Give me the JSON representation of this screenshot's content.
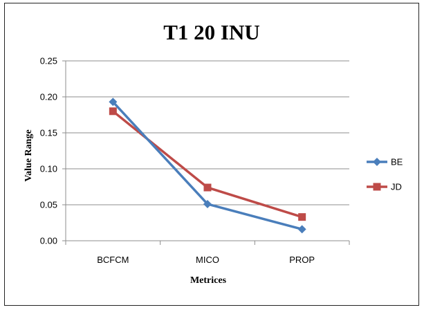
{
  "chart_data": {
    "type": "line",
    "title": "T1 20 INU",
    "xlabel": "Metrices",
    "ylabel": "Value Range",
    "categories": [
      "BCFCM",
      "MICO",
      "PROP"
    ],
    "ylim": [
      0,
      0.25
    ],
    "yticks": [
      "0.00",
      "0.05",
      "0.10",
      "0.15",
      "0.20",
      "0.25"
    ],
    "grid": true,
    "legend_position": "right",
    "series": [
      {
        "name": "BE",
        "values": [
          0.193,
          0.051,
          0.016
        ],
        "color": "#4a7ebb",
        "marker": "diamond"
      },
      {
        "name": "JD",
        "values": [
          0.18,
          0.074,
          0.033
        ],
        "color": "#be4b48",
        "marker": "square"
      }
    ]
  }
}
